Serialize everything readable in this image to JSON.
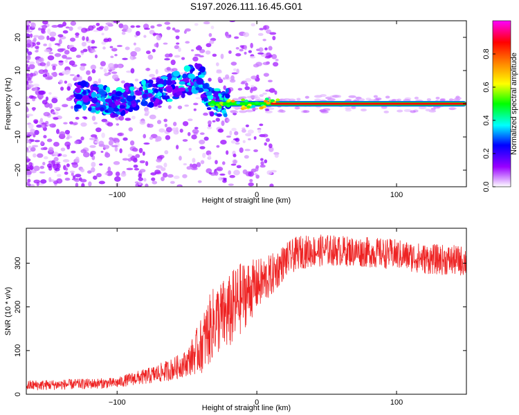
{
  "figure": {
    "title": "S197.2026.111.16.45.G01"
  },
  "chart_data": [
    {
      "type": "heatmap",
      "xlabel": "Height of straight line (km)",
      "ylabel": "Frequency (Hz)",
      "xlim": [
        -165,
        150
      ],
      "ylim": [
        -25,
        25
      ],
      "xticks": [
        -100,
        0,
        100
      ],
      "yticks": [
        -20,
        -10,
        0,
        10,
        20
      ],
      "colorbar": {
        "label": "Normalized spectral amplitude",
        "range": [
          0,
          1
        ],
        "ticks": [
          0.0,
          0.2,
          0.4,
          0.6,
          0.8
        ],
        "colors": [
          "#ffffff",
          "#9900ff",
          "#0000ff",
          "#00ffff",
          "#00ff00",
          "#ffff00",
          "#ff7f00",
          "#ff0000",
          "#ff00ff"
        ]
      },
      "ridge": {
        "description": "scattered ridge rising from about 0 Hz at -100 km to about 8 Hz at -40 km, then a continuous high-amplitude line at 0 Hz from about -35 km to 150 km",
        "points": [
          [
            -165,
            5
          ],
          [
            -140,
            3
          ],
          [
            -120,
            2
          ],
          [
            -100,
            0
          ],
          [
            -90,
            2
          ],
          [
            -80,
            3
          ],
          [
            -70,
            4
          ],
          [
            -60,
            5
          ],
          [
            -50,
            7
          ],
          [
            -40,
            8
          ],
          [
            -35,
            1
          ],
          [
            -20,
            0
          ],
          [
            0,
            0
          ],
          [
            50,
            0
          ],
          [
            100,
            0
          ],
          [
            150,
            0
          ]
        ]
      }
    },
    {
      "type": "line",
      "xlabel": "Height of straight line (km)",
      "ylabel": "SNR (10 * v/v)",
      "xlim": [
        -165,
        150
      ],
      "ylim": [
        0,
        380
      ],
      "xticks": [
        -100,
        0,
        100
      ],
      "yticks": [
        0,
        100,
        200,
        300
      ],
      "series": [
        {
          "name": "SNR",
          "color": "#ee2222",
          "trend": [
            [
              -165,
              20
            ],
            [
              -140,
              22
            ],
            [
              -120,
              24
            ],
            [
              -100,
              26
            ],
            [
              -90,
              35
            ],
            [
              -80,
              40
            ],
            [
              -70,
              48
            ],
            [
              -60,
              58
            ],
            [
              -50,
              72
            ],
            [
              -40,
              110
            ],
            [
              -30,
              170
            ],
            [
              -20,
              185
            ],
            [
              -10,
              225
            ],
            [
              0,
              250
            ],
            [
              10,
              270
            ],
            [
              20,
              305
            ],
            [
              30,
              325
            ],
            [
              50,
              330
            ],
            [
              80,
              325
            ],
            [
              100,
              320
            ],
            [
              120,
              310
            ],
            [
              150,
              305
            ]
          ],
          "noise_amplitude": [
            [
              -165,
              12
            ],
            [
              -100,
              12
            ],
            [
              -80,
              18
            ],
            [
              -50,
              30
            ],
            [
              -35,
              80
            ],
            [
              -15,
              90
            ],
            [
              0,
              60
            ],
            [
              20,
              40
            ],
            [
              60,
              35
            ],
            [
              150,
              35
            ]
          ]
        }
      ]
    }
  ]
}
